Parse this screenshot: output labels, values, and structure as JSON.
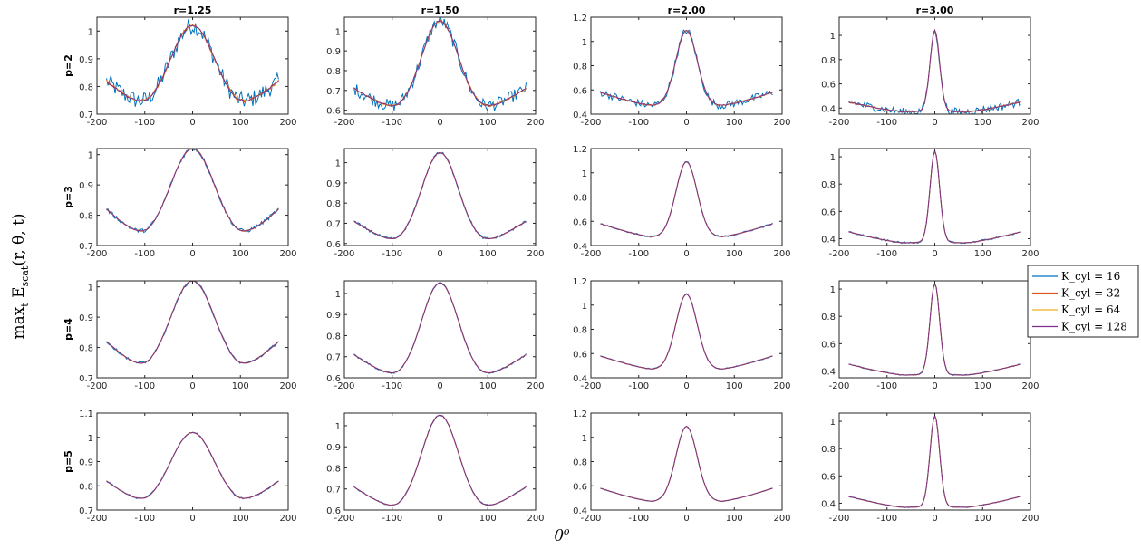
{
  "chart_data": {
    "type": "line",
    "ylabel": "max_t E_scat(r, θ, t)",
    "xlabel": "θ^o",
    "column_titles": [
      "r=1.25",
      "r=1.50",
      "r=2.00",
      "r=3.00"
    ],
    "row_labels": [
      "p=2",
      "p=3",
      "p=4",
      "p=5"
    ],
    "xlim": [
      -200,
      200
    ],
    "xticks": [
      -200,
      -100,
      0,
      100,
      200
    ],
    "legend": {
      "placement": "right",
      "entries": [
        {
          "label": "K_cyl = 16",
          "color": "#0072BD"
        },
        {
          "label": "K_cyl = 32",
          "color": "#D95319"
        },
        {
          "label": "K_cyl = 64",
          "color": "#EDB120"
        },
        {
          "label": "K_cyl = 128",
          "color": "#7E2F8E"
        }
      ]
    },
    "columns": [
      {
        "r": "1.25",
        "peak": 1.02,
        "floor": 0.72,
        "edge": 0.82,
        "w": 45,
        "minpos": 90
      },
      {
        "r": "1.50",
        "peak": 1.05,
        "floor": 0.6,
        "edge": 0.71,
        "w": 38,
        "minpos": 85
      },
      {
        "r": "2.00",
        "peak": 1.09,
        "floor": 0.47,
        "edge": 0.58,
        "w": 22,
        "minpos": 70
      },
      {
        "r": "3.00",
        "peak": 1.04,
        "floor": 0.37,
        "edge": 0.45,
        "w": 10,
        "minpos": 65
      }
    ],
    "panels_ylim": [
      [
        [
          0.7,
          1.05
        ],
        [
          0.58,
          1.07
        ],
        [
          0.4,
          1.2
        ],
        [
          0.35,
          1.15
        ]
      ],
      [
        [
          0.7,
          1.02
        ],
        [
          0.59,
          1.07
        ],
        [
          0.4,
          1.2
        ],
        [
          0.35,
          1.06
        ]
      ],
      [
        [
          0.7,
          1.02
        ],
        [
          0.6,
          1.06
        ],
        [
          0.4,
          1.2
        ],
        [
          0.35,
          1.06
        ]
      ],
      [
        [
          0.7,
          1.1
        ],
        [
          0.6,
          1.06
        ],
        [
          0.4,
          1.2
        ],
        [
          0.35,
          1.06
        ]
      ]
    ],
    "panels_yticks": [
      [
        [
          0.7,
          0.8,
          0.9,
          1
        ],
        [
          0.6,
          0.7,
          0.8,
          0.9,
          1
        ],
        [
          0.4,
          0.6,
          0.8,
          1,
          1.2
        ],
        [
          0.4,
          0.6,
          0.8,
          1
        ]
      ],
      [
        [
          0.7,
          0.8,
          0.9,
          1
        ],
        [
          0.6,
          0.7,
          0.8,
          0.9,
          1
        ],
        [
          0.4,
          0.6,
          0.8,
          1,
          1.2
        ],
        [
          0.4,
          0.6,
          0.8,
          1
        ]
      ],
      [
        [
          0.7,
          0.8,
          0.9,
          1
        ],
        [
          0.6,
          0.7,
          0.8,
          0.9,
          1
        ],
        [
          0.4,
          0.6,
          0.8,
          1,
          1.2
        ],
        [
          0.4,
          0.6,
          0.8,
          1
        ]
      ],
      [
        [
          0.7,
          0.8,
          0.9,
          1,
          1.1
        ],
        [
          0.6,
          0.7,
          0.8,
          0.9,
          1
        ],
        [
          0.4,
          0.6,
          0.8,
          1,
          1.2
        ],
        [
          0.4,
          0.6,
          0.8,
          1
        ]
      ]
    ],
    "noise_by_row": [
      0.018,
      0.006,
      0.004,
      0.003
    ],
    "theta_range": [
      -180,
      180
    ]
  }
}
